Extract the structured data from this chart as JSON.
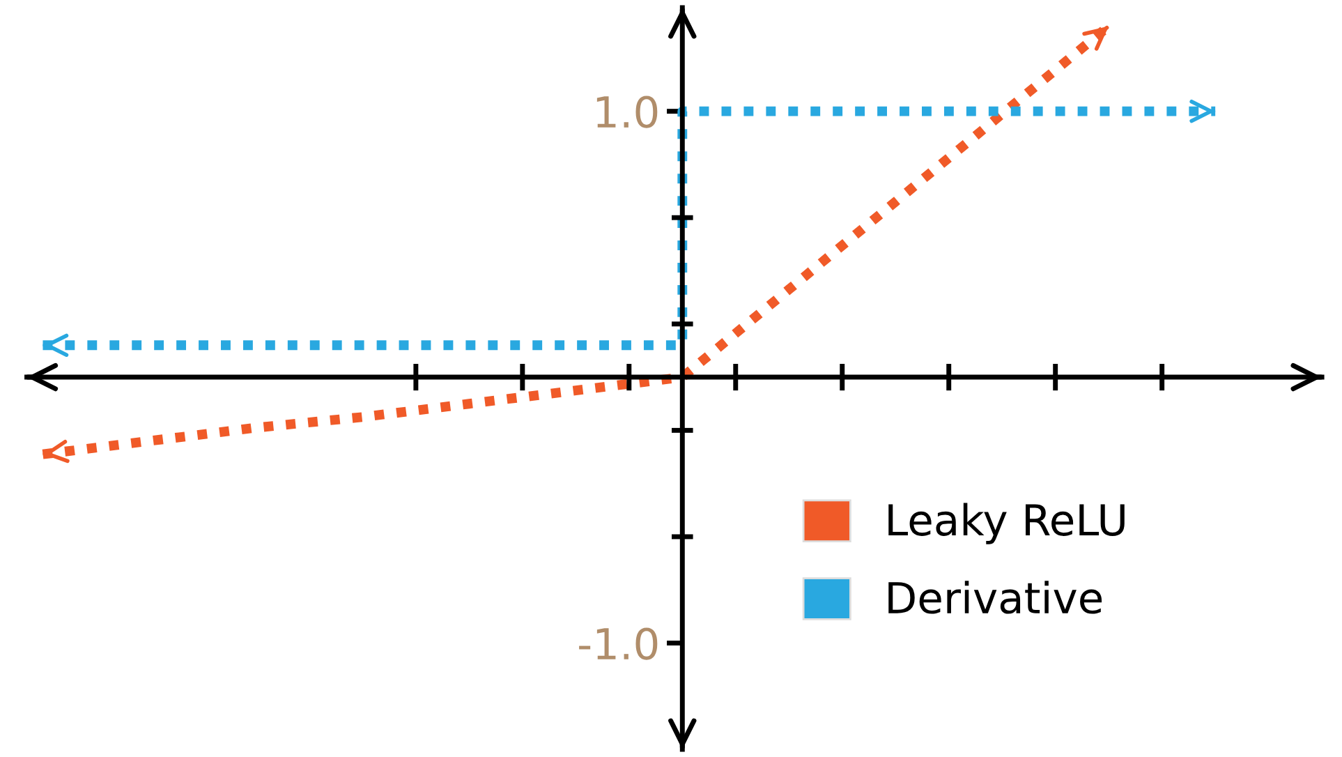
{
  "chart_data": {
    "type": "line",
    "categories": [
      null,
      null,
      null,
      null,
      null,
      null,
      null,
      null,
      null,
      null,
      null,
      null
    ],
    "ylim": [
      -1.4,
      1.39
    ],
    "yticks": [
      {
        "value": -1.0,
        "label": "-1.0"
      },
      {
        "value": 1.0,
        "label": "1.0"
      }
    ],
    "series": [
      {
        "name": "Leaky ReLU",
        "color": "#f05a28",
        "values": [
          -0.29,
          -0.24,
          -0.19,
          -0.15,
          -0.1,
          -0.05,
          0,
          0.33,
          0.66,
          0.99,
          1.32,
          null
        ]
      },
      {
        "name": "Derivative",
        "type": "step",
        "color": "#29a8e0",
        "values": [
          0.12,
          0.12,
          0.12,
          0.12,
          0.12,
          0.12,
          1.0,
          1.0,
          1.0,
          1.0,
          1.0,
          1.0
        ]
      }
    ],
    "line_style": "dotted",
    "marker": "none",
    "grid": false,
    "legend": "bottom right",
    "tick_labels": "y"
  }
}
